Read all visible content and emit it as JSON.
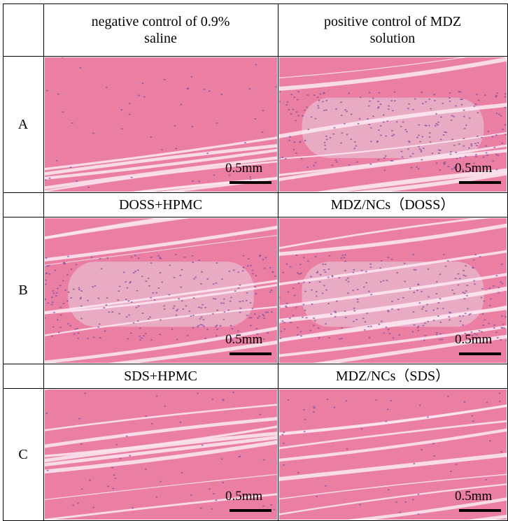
{
  "table": {
    "rows": [
      {
        "label": "A",
        "headers": [
          "negative control of 0.9% saline",
          "positive control of MDZ solution"
        ],
        "scale_bars": [
          "0.5mm",
          "0.5mm"
        ]
      },
      {
        "label": "B",
        "headers": [
          "DOSS+HPMC",
          "MDZ/NCs（DOSS）"
        ],
        "scale_bars": [
          "0.5mm",
          "0.5mm"
        ]
      },
      {
        "label": "C",
        "headers": [
          "SDS+HPMC",
          "MDZ/NCs（SDS）"
        ],
        "scale_bars": [
          "0.5mm",
          "0.5mm"
        ]
      }
    ]
  }
}
